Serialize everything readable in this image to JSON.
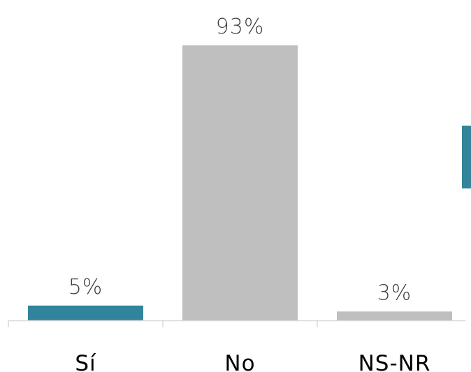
{
  "chart_data": {
    "type": "bar",
    "categories": [
      "Sí",
      "No",
      "NS-NR"
    ],
    "values": [
      5,
      93,
      3
    ],
    "value_labels": [
      "5%",
      "93%",
      "3%"
    ],
    "unit": "%",
    "ylim": [
      0,
      93
    ],
    "grid": false,
    "legend": "right (partially cropped)",
    "title": "",
    "xlabel": "",
    "ylabel": "",
    "colors": {
      "highlight": "#31849b",
      "default": "#bfbfbf",
      "axis": "#d9d9d9",
      "value_text": "#404040",
      "category_text": "#000000"
    },
    "bar_colors": [
      "#31849b",
      "#bfbfbf",
      "#bfbfbf"
    ]
  }
}
